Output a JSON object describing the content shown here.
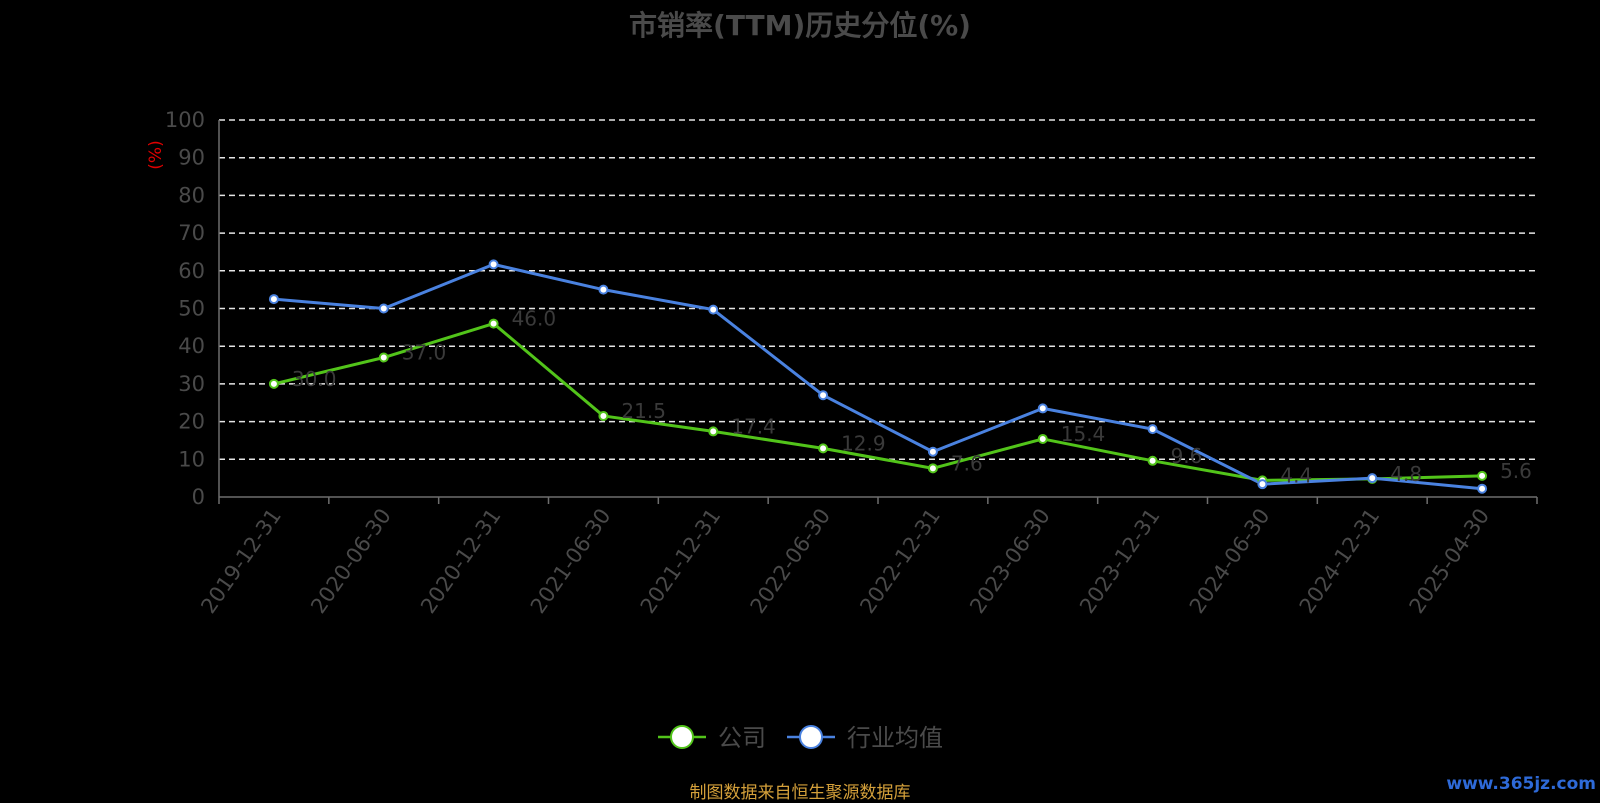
{
  "chart_data": {
    "type": "line",
    "title": "市销率(TTM)历史分位(%)",
    "ylabel": "(%)",
    "ylim": [
      0,
      100
    ],
    "yticks": [
      "0",
      "10",
      "20",
      "30",
      "40",
      "50",
      "60",
      "70",
      "80",
      "90",
      "100"
    ],
    "categories": [
      "2019-12-31",
      "2020-06-30",
      "2020-12-31",
      "2021-06-30",
      "2021-12-31",
      "2022-06-30",
      "2022-12-31",
      "2023-06-30",
      "2023-12-31",
      "2024-06-30",
      "2024-12-31",
      "2025-04-30"
    ],
    "grid": true,
    "legend_position": "bottom",
    "series": [
      {
        "name": "公司",
        "color": "#52c41a",
        "values": [
          30.0,
          37.0,
          46.0,
          21.5,
          17.4,
          12.9,
          7.6,
          15.4,
          9.6,
          4.4,
          4.8,
          5.6
        ],
        "labels": [
          "30.0",
          "37.0",
          "46.0",
          "21.5",
          "17.4",
          "12.9",
          "7.6",
          "15.4",
          "9.6",
          "4.4",
          "4.8",
          "5.6"
        ]
      },
      {
        "name": "行业均值",
        "color": "#4a82e0",
        "values": [
          52.5,
          50.0,
          61.7,
          55.0,
          49.7,
          27.0,
          12.0,
          23.5,
          18.0,
          3.4,
          5.0,
          2.2
        ]
      }
    ]
  },
  "footer": {
    "source": "制图数据来自恒生聚源数据库",
    "watermark": "www.365jz.com"
  }
}
